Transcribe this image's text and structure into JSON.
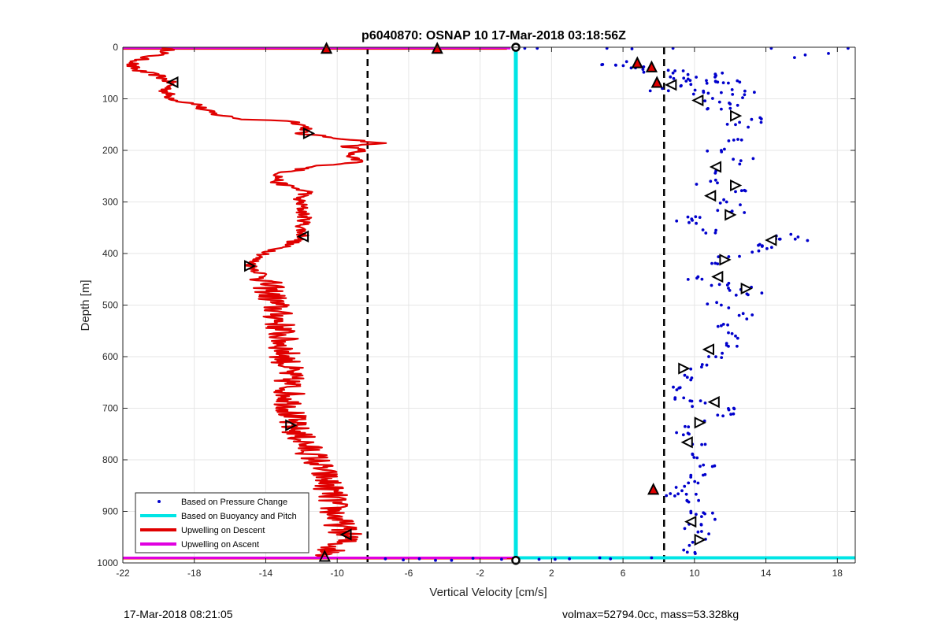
{
  "chart_data": {
    "type": "scatter",
    "title": "p6040870: OSNAP 10 17-Mar-2018 03:18:56Z",
    "xlabel": "Vertical Velocity [cm/s]",
    "ylabel": "Depth [m]",
    "xlim": [
      -22,
      19
    ],
    "ylim": [
      1000,
      0
    ],
    "y_reversed": true,
    "grid": true,
    "x_ticks": [
      -22,
      -18,
      -14,
      -10,
      -6,
      -2,
      2,
      6,
      10,
      14,
      18
    ],
    "y_ticks": [
      0,
      100,
      200,
      300,
      400,
      500,
      600,
      700,
      800,
      900,
      1000
    ],
    "legend_position": "bottom-left",
    "legend": [
      {
        "label": "Based on Pressure Change",
        "color": "#0000cc",
        "style": "dot"
      },
      {
        "label": "Based on Buoyancy and Pitch",
        "color": "#00e5e5",
        "style": "line"
      },
      {
        "label": "Upwelling on Descent",
        "color": "#e00000",
        "style": "line"
      },
      {
        "label": "Upwelling on Ascent",
        "color": "#e000e0",
        "style": "line"
      }
    ],
    "reference_lines_x": [
      -8.3,
      8.3
    ],
    "buoyancy_pitch_x": 0,
    "ascent_lines": [
      {
        "depth": 2,
        "x0": -22,
        "x1": -0.3
      },
      {
        "depth": 990,
        "x0": -22,
        "x1": 0
      }
    ],
    "descent_profile": [
      [
        -19.5,
        2
      ],
      [
        -19.5,
        10
      ],
      [
        -20.8,
        20
      ],
      [
        -21.6,
        35
      ],
      [
        -21.2,
        45
      ],
      [
        -20,
        55
      ],
      [
        -19.3,
        70
      ],
      [
        -19.6,
        85
      ],
      [
        -19.3,
        98
      ],
      [
        -18.8,
        105
      ],
      [
        -17.8,
        110
      ],
      [
        -17.6,
        120
      ],
      [
        -16.8,
        130
      ],
      [
        -15.2,
        140
      ],
      [
        -12.5,
        143
      ],
      [
        -12,
        150
      ],
      [
        -11.6,
        158
      ],
      [
        -12.2,
        167
      ],
      [
        -9.5,
        178
      ],
      [
        -7.5,
        186
      ],
      [
        -9.5,
        192
      ],
      [
        -8.6,
        200
      ],
      [
        -9.6,
        210
      ],
      [
        -8.6,
        222
      ],
      [
        -10.5,
        228
      ],
      [
        -11.8,
        235
      ],
      [
        -13.2,
        245
      ],
      [
        -13.4,
        262
      ],
      [
        -12.2,
        275
      ],
      [
        -11.5,
        282
      ],
      [
        -12.2,
        290
      ],
      [
        -12,
        310
      ],
      [
        -11.8,
        335
      ],
      [
        -12,
        352
      ],
      [
        -11.9,
        368
      ],
      [
        -12.6,
        380
      ],
      [
        -13.6,
        395
      ],
      [
        -14.6,
        410
      ],
      [
        -14.8,
        425
      ],
      [
        -14.2,
        440
      ],
      [
        -13.8,
        470
      ],
      [
        -13.5,
        500
      ],
      [
        -13.2,
        540
      ],
      [
        -13,
        580
      ],
      [
        -12.8,
        620
      ],
      [
        -12.7,
        660
      ],
      [
        -12.6,
        700
      ],
      [
        -12.6,
        730
      ],
      [
        -12,
        760
      ],
      [
        -11.2,
        800
      ],
      [
        -10.6,
        840
      ],
      [
        -10.3,
        870
      ],
      [
        -10.2,
        900
      ],
      [
        -9.8,
        930
      ],
      [
        -9.4,
        950
      ],
      [
        -10.2,
        970
      ],
      [
        -10.6,
        988
      ]
    ],
    "descent_noise_amplitude": 0.9,
    "pressure_change_points": [
      [
        18.6,
        2
      ],
      [
        17.5,
        12
      ],
      [
        16.2,
        15
      ],
      [
        15.6,
        20
      ],
      [
        14.3,
        2
      ],
      [
        8.8,
        2
      ],
      [
        6.5,
        3
      ],
      [
        5.1,
        2
      ],
      [
        1.2,
        2
      ],
      [
        0.5,
        2
      ],
      [
        6.2,
        28
      ],
      [
        5.6,
        35
      ],
      [
        6.7,
        40
      ],
      [
        7.7,
        42
      ],
      [
        8.8,
        50
      ],
      [
        10.1,
        58
      ],
      [
        11.2,
        55
      ],
      [
        9.4,
        60
      ],
      [
        12.4,
        65
      ],
      [
        10.7,
        70
      ],
      [
        9.8,
        72
      ],
      [
        8.2,
        80
      ],
      [
        10.5,
        85
      ],
      [
        11.5,
        88
      ],
      [
        12.8,
        92
      ],
      [
        10.3,
        100
      ],
      [
        12,
        110
      ],
      [
        11.5,
        120
      ],
      [
        13.2,
        140
      ],
      [
        12.3,
        150
      ],
      [
        12.2,
        180
      ],
      [
        11.5,
        200
      ],
      [
        12.6,
        220
      ],
      [
        11.2,
        240
      ],
      [
        10.9,
        260
      ],
      [
        12.3,
        280
      ],
      [
        11.8,
        300
      ],
      [
        12,
        320
      ],
      [
        10.3,
        330
      ],
      [
        9.7,
        340
      ],
      [
        11.2,
        355
      ],
      [
        14.8,
        372
      ],
      [
        15.8,
        368
      ],
      [
        13.8,
        385
      ],
      [
        13.6,
        395
      ],
      [
        11.8,
        410
      ],
      [
        11.3,
        420
      ],
      [
        10.2,
        445
      ],
      [
        11.4,
        460
      ],
      [
        12.6,
        470
      ],
      [
        13,
        480
      ],
      [
        11.5,
        500
      ],
      [
        12.5,
        520
      ],
      [
        11.5,
        540
      ],
      [
        12.3,
        560
      ],
      [
        11.9,
        580
      ],
      [
        10.8,
        600
      ],
      [
        10.4,
        620
      ],
      [
        9.6,
        640
      ],
      [
        9.2,
        660
      ],
      [
        9.4,
        680
      ],
      [
        10.6,
        690
      ],
      [
        12.2,
        700
      ],
      [
        11.6,
        715
      ],
      [
        10.2,
        730
      ],
      [
        9.7,
        750
      ],
      [
        10.6,
        770
      ],
      [
        9.9,
        790
      ],
      [
        10.5,
        810
      ],
      [
        9.8,
        830
      ],
      [
        10.2,
        845
      ],
      [
        9.3,
        860
      ],
      [
        8.9,
        870
      ],
      [
        9.6,
        880
      ],
      [
        9.8,
        900
      ],
      [
        10.4,
        910
      ],
      [
        9.7,
        925
      ],
      [
        10.2,
        940
      ],
      [
        9.9,
        960
      ],
      [
        9.4,
        975
      ],
      [
        4.7,
        990
      ],
      [
        3,
        992
      ],
      [
        2.2,
        993
      ],
      [
        -0.8,
        993
      ],
      [
        -2.4,
        991
      ],
      [
        -4.5,
        995
      ],
      [
        -5.4,
        992
      ],
      [
        -6.3,
        994
      ],
      [
        -7.3,
        992
      ],
      [
        -3.6,
        995
      ],
      [
        1.3,
        993
      ],
      [
        5.3,
        992
      ],
      [
        7.6,
        990
      ]
    ],
    "pressure_noise_amplitude": 0.8,
    "descent_markers": [
      {
        "x": -19.2,
        "y": 68,
        "dir": "left"
      },
      {
        "x": -11.6,
        "y": 167,
        "dir": "right"
      },
      {
        "x": -11.9,
        "y": 367,
        "dir": "left"
      },
      {
        "x": -14.9,
        "y": 424,
        "dir": "right"
      },
      {
        "x": -12.6,
        "y": 733,
        "dir": "right"
      },
      {
        "x": -9.5,
        "y": 945,
        "dir": "left"
      },
      {
        "x": -10.7,
        "y": 987,
        "dir": "up"
      }
    ],
    "pressure_markers": [
      {
        "x": 8.7,
        "y": 73,
        "dir": "left"
      },
      {
        "x": 10.2,
        "y": 103,
        "dir": "left"
      },
      {
        "x": 12.3,
        "y": 133,
        "dir": "right"
      },
      {
        "x": 11.2,
        "y": 232,
        "dir": "left"
      },
      {
        "x": 12.3,
        "y": 268,
        "dir": "right"
      },
      {
        "x": 10.9,
        "y": 288,
        "dir": "left"
      },
      {
        "x": 12,
        "y": 325,
        "dir": "right"
      },
      {
        "x": 14.3,
        "y": 374,
        "dir": "left"
      },
      {
        "x": 11.7,
        "y": 412,
        "dir": "right"
      },
      {
        "x": 11.3,
        "y": 445,
        "dir": "left"
      },
      {
        "x": 12.9,
        "y": 468,
        "dir": "right"
      },
      {
        "x": 10.8,
        "y": 586,
        "dir": "left"
      },
      {
        "x": 9.4,
        "y": 623,
        "dir": "right"
      },
      {
        "x": 11.1,
        "y": 688,
        "dir": "left"
      },
      {
        "x": 10.3,
        "y": 728,
        "dir": "right"
      },
      {
        "x": 9.6,
        "y": 766,
        "dir": "left"
      },
      {
        "x": 9.8,
        "y": 920,
        "dir": "left"
      },
      {
        "x": 10.3,
        "y": 955,
        "dir": "right"
      }
    ],
    "red_triangle_markers": [
      {
        "x": 6.8,
        "y": 30
      },
      {
        "x": 7.6,
        "y": 38
      },
      {
        "x": 7.9,
        "y": 68
      },
      {
        "x": 7.7,
        "y": 857
      },
      {
        "x": -10.6,
        "y": 2
      },
      {
        "x": -4.4,
        "y": 2
      }
    ],
    "surface_markers": [
      {
        "x": 0,
        "y": 0
      },
      {
        "x": 0,
        "y": 995
      }
    ]
  },
  "footer": {
    "left": "17-Mar-2018 08:21:05",
    "right": "volmax=52794.0cc, mass=53.328kg"
  }
}
